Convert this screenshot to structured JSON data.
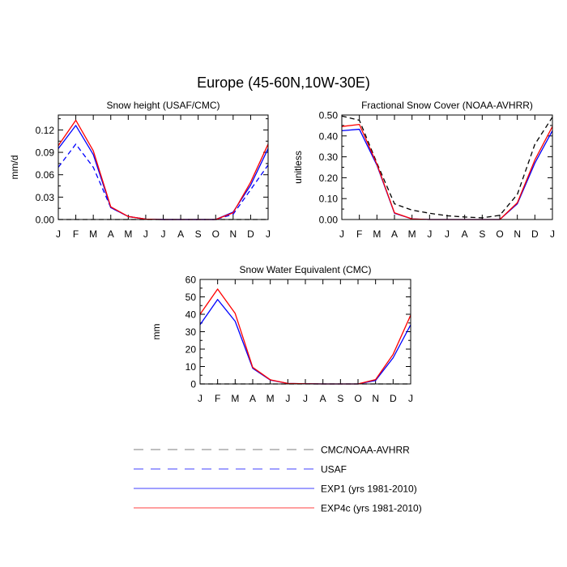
{
  "figure": {
    "title": "Europe (45-60N,10W-30E)"
  },
  "months": [
    "J",
    "F",
    "M",
    "A",
    "M",
    "J",
    "J",
    "A",
    "S",
    "O",
    "N",
    "D",
    "J"
  ],
  "legend": [
    {
      "label": "CMC/NOAA-AVHRR",
      "color": "#000000",
      "dash": true
    },
    {
      "label": "USAF",
      "color": "#0000ff",
      "dash": true
    },
    {
      "label": "EXP1 (yrs 1981-2010)",
      "color": "#0000ff",
      "dash": false
    },
    {
      "label": "EXP4c (yrs 1981-2010)",
      "color": "#ff0000",
      "dash": false
    }
  ],
  "chart_data": [
    {
      "type": "line",
      "title": "Snow height (USAF/CMC)",
      "ylabel": "mm/d",
      "ylim": [
        0,
        0.14
      ],
      "yticks": [
        "0.00",
        "0.03",
        "0.06",
        "0.09",
        "0.12"
      ],
      "ytick_values": [
        0,
        0.03,
        0.06,
        0.09,
        0.12
      ],
      "x": [
        "J",
        "F",
        "M",
        "A",
        "M",
        "J",
        "J",
        "A",
        "S",
        "O",
        "N",
        "D",
        "J"
      ],
      "series": [
        {
          "legend": "CMC/NOAA-AVHRR",
          "color": "#000000",
          "dash": true,
          "values": [
            0,
            0,
            0,
            0,
            0,
            0,
            0,
            0,
            0,
            0,
            0,
            0,
            0
          ]
        },
        {
          "legend": "USAF",
          "color": "#0000ff",
          "dash": true,
          "values": [
            0.07,
            0.101,
            0.07,
            0.016,
            0.004,
            0.0005,
            0,
            0,
            0,
            0,
            0.007,
            0.04,
            0.073
          ]
        },
        {
          "legend": "EXP1 (yrs 1981-2010)",
          "color": "#0000ff",
          "dash": false,
          "values": [
            0.095,
            0.126,
            0.087,
            0.016,
            0.004,
            0.0005,
            0,
            0,
            0,
            0,
            0.01,
            0.046,
            0.095
          ]
        },
        {
          "legend": "EXP4c (yrs 1981-2010)",
          "color": "#ff0000",
          "dash": false,
          "values": [
            0.099,
            0.133,
            0.092,
            0.017,
            0.004,
            0.0005,
            0,
            0,
            0,
            0,
            0.009,
            0.05,
            0.101
          ]
        }
      ]
    },
    {
      "type": "line",
      "title": "Fractional Snow Cover (NOAA-AVHRR)",
      "ylabel": "unitless",
      "ylim": [
        0,
        0.5
      ],
      "yticks": [
        "0.00",
        "0.10",
        "0.20",
        "0.30",
        "0.40",
        "0.50"
      ],
      "ytick_values": [
        0,
        0.1,
        0.2,
        0.3,
        0.4,
        0.5
      ],
      "x": [
        "J",
        "F",
        "M",
        "A",
        "M",
        "J",
        "J",
        "A",
        "S",
        "O",
        "N",
        "D",
        "J"
      ],
      "series": [
        {
          "legend": "CMC/NOAA-AVHRR",
          "color": "#000000",
          "dash": true,
          "values": [
            0.495,
            0.475,
            0.27,
            0.075,
            0.045,
            0.03,
            0.018,
            0.012,
            0.008,
            0.02,
            0.12,
            0.36,
            0.49
          ]
        },
        {
          "legend": "EXP1 (yrs 1981-2010)",
          "color": "#0000ff",
          "dash": false,
          "values": [
            0.425,
            0.432,
            0.26,
            0.03,
            0.003,
            0,
            0,
            0,
            0,
            0,
            0.075,
            0.27,
            0.425
          ]
        },
        {
          "legend": "EXP4c (yrs 1981-2010)",
          "color": "#ff0000",
          "dash": false,
          "values": [
            0.445,
            0.455,
            0.265,
            0.032,
            0.003,
            0,
            0,
            0,
            0,
            0,
            0.08,
            0.285,
            0.445
          ]
        }
      ]
    },
    {
      "type": "line",
      "title": "Snow Water Equivalent (CMC)",
      "ylabel": "mm",
      "ylim": [
        0,
        60
      ],
      "yticks": [
        "0",
        "10",
        "20",
        "30",
        "40",
        "50",
        "60"
      ],
      "ytick_values": [
        0,
        10,
        20,
        30,
        40,
        50,
        60
      ],
      "x": [
        "J",
        "F",
        "M",
        "A",
        "M",
        "J",
        "J",
        "A",
        "S",
        "O",
        "N",
        "D",
        "J"
      ],
      "series": [
        {
          "legend": "CMC/NOAA-AVHRR",
          "color": "#000000",
          "dash": true,
          "values": [
            0,
            0,
            0,
            0,
            0,
            0,
            0,
            0,
            0,
            0,
            0,
            0,
            0
          ]
        },
        {
          "legend": "EXP1 (yrs 1981-2010)",
          "color": "#0000ff",
          "dash": false,
          "values": [
            34,
            48.5,
            36,
            9,
            2.2,
            0.3,
            0.1,
            0,
            0,
            0,
            2,
            15,
            34
          ]
        },
        {
          "legend": "EXP4c (yrs 1981-2010)",
          "color": "#ff0000",
          "dash": false,
          "values": [
            40,
            54.5,
            40.5,
            9.5,
            2.4,
            0.3,
            0.1,
            0,
            0,
            0,
            2.5,
            17,
            39.5
          ]
        }
      ]
    }
  ]
}
